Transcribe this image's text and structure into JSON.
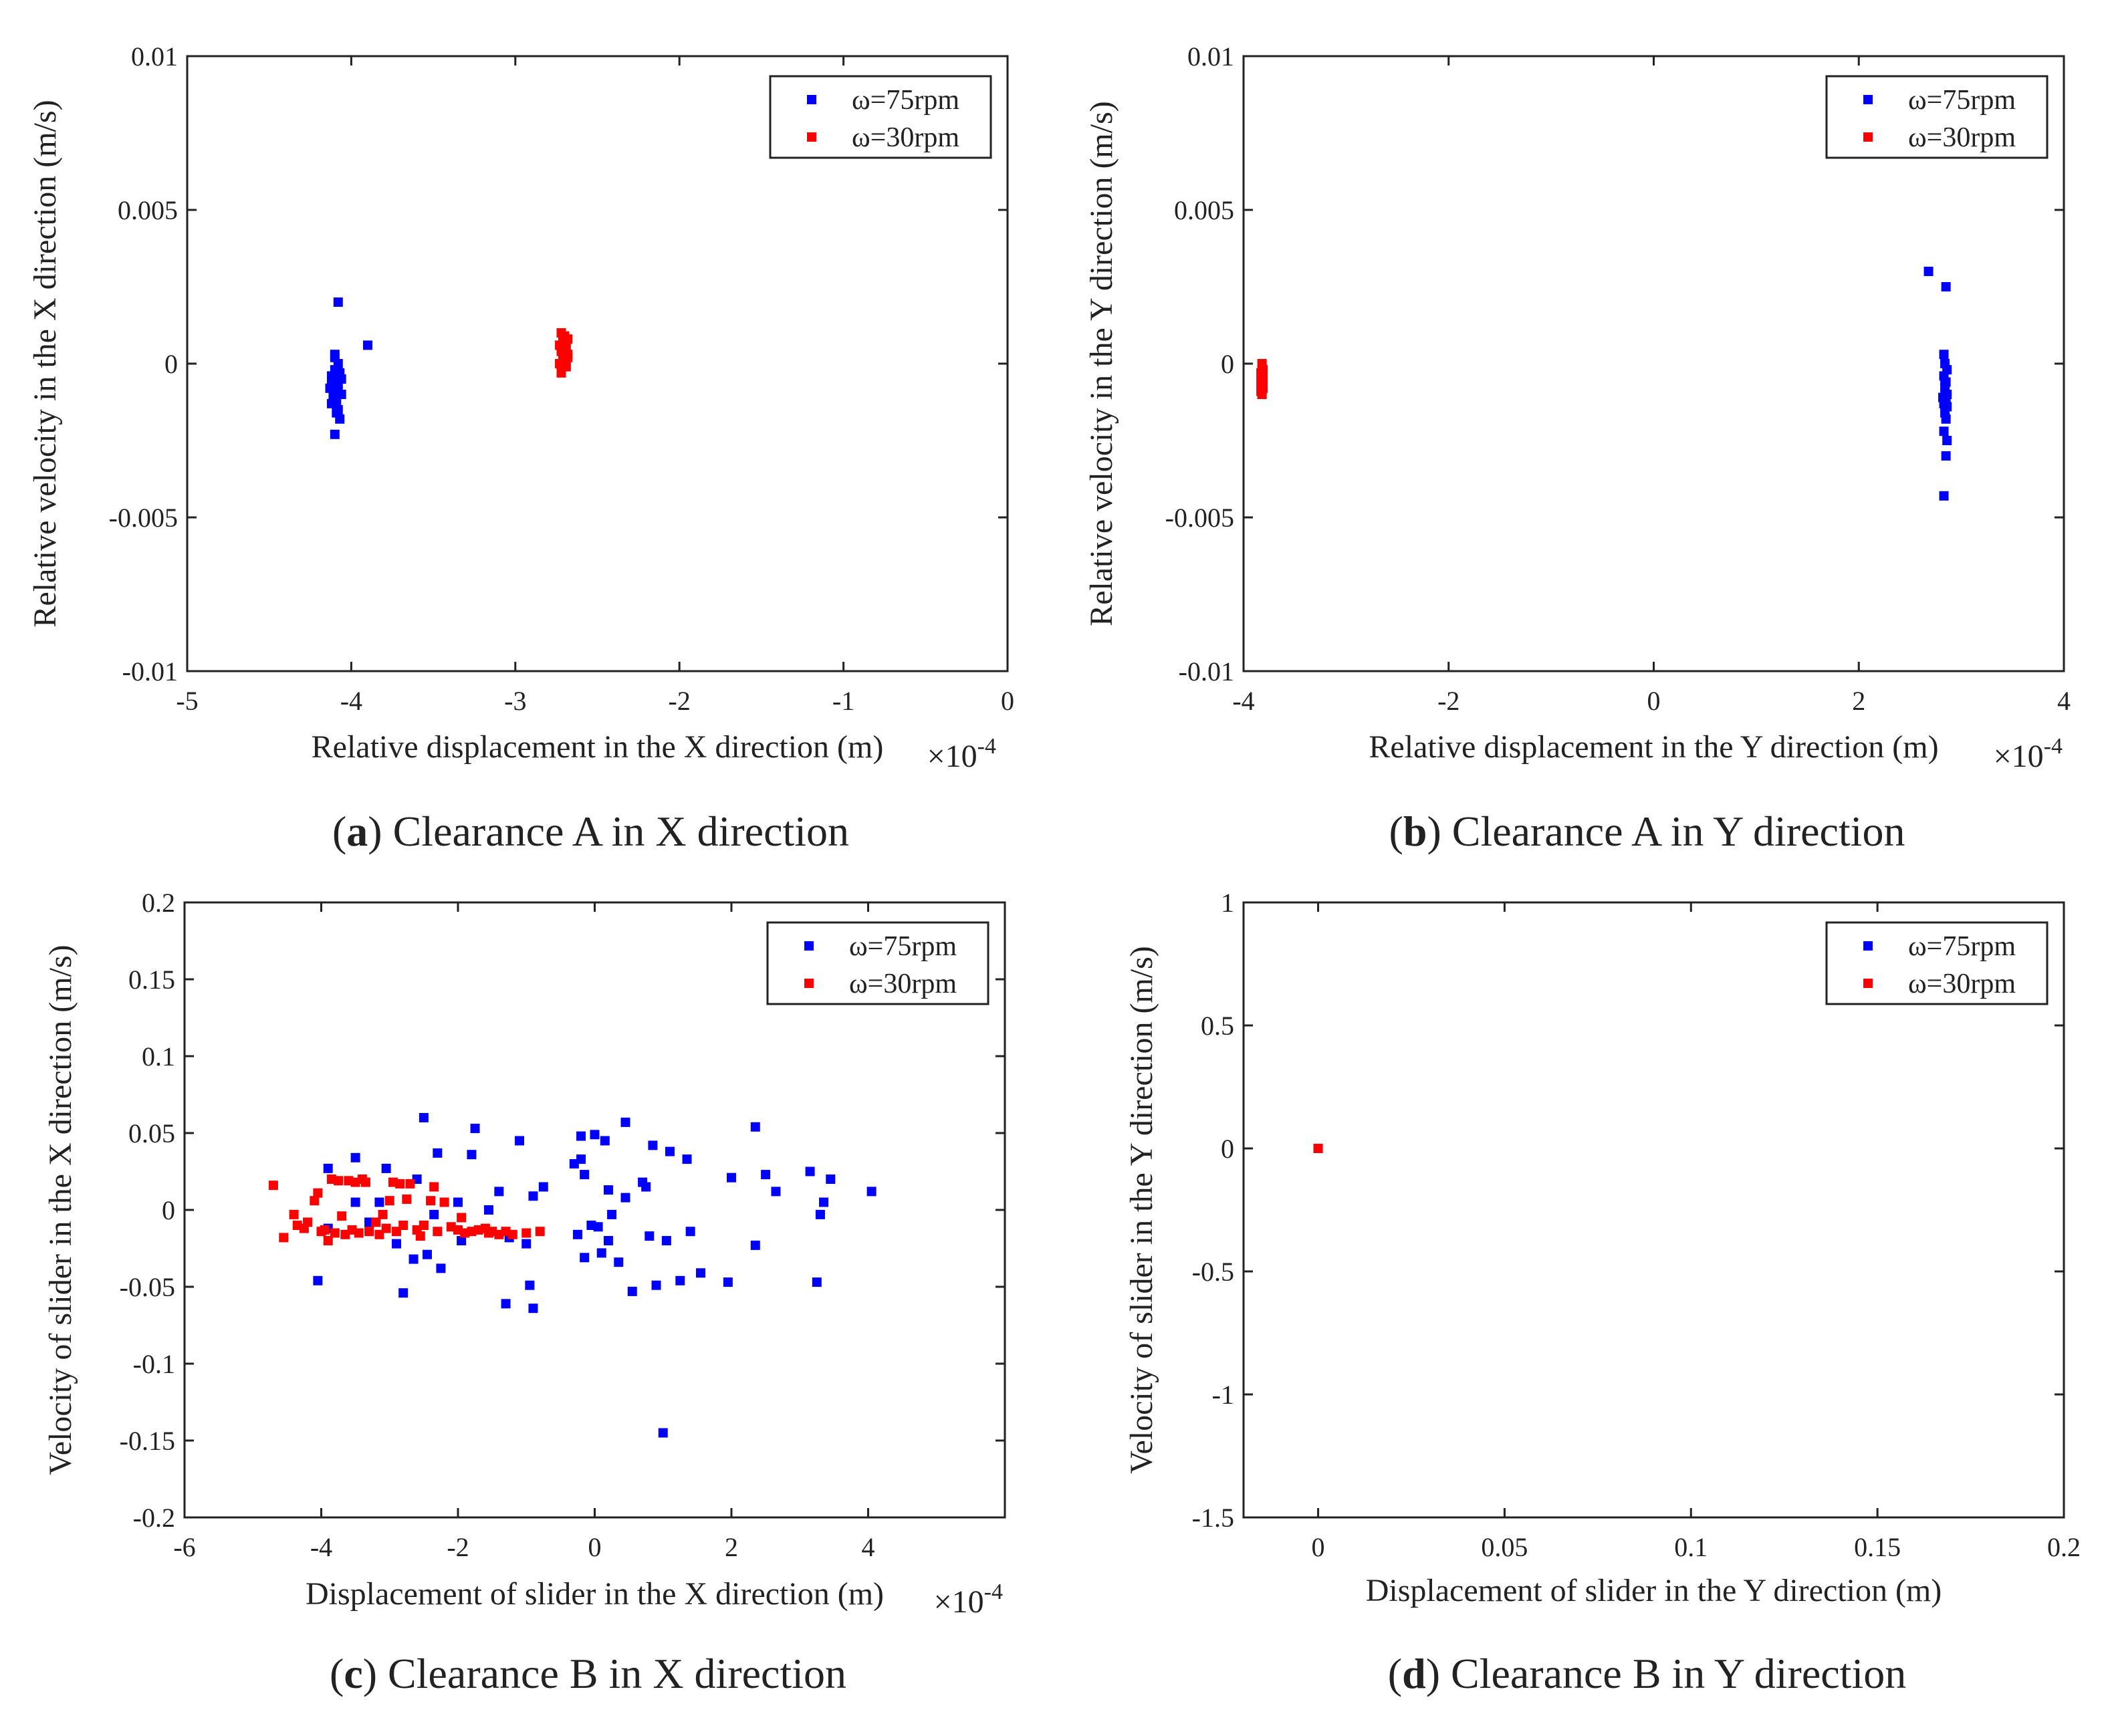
{
  "chart_data": [
    {
      "id": "a",
      "type": "scatter",
      "caption": {
        "letter": "a",
        "text": " Clearance A in X direction"
      },
      "xlabel": "Relative displacement in the X direction (m)",
      "ylabel": "Relative velocity in the X direction (m/s)",
      "x_multiplier": "×10",
      "x_exponent": "-4",
      "xlim": [
        -5,
        0
      ],
      "ylim": [
        -0.01,
        0.01
      ],
      "xticks": [
        -5,
        -4,
        -3,
        -2,
        -1,
        0
      ],
      "xtick_labels": [
        "-5",
        "-4",
        "-3",
        "-2",
        "-1",
        "0"
      ],
      "yticks": [
        -0.01,
        -0.005,
        0,
        0.005,
        0.01
      ],
      "ytick_labels": [
        "-0.01",
        "-0.005",
        "0",
        "0.005",
        "0.01"
      ],
      "legend_position": "top-right",
      "series": [
        {
          "name": "ω=75rpm",
          "color": "#0000ff",
          "points": [
            [
              -4.08,
              0.002
            ],
            [
              -3.9,
              0.0006
            ],
            [
              -4.1,
              0.0003
            ],
            [
              -4.1,
              0.0002
            ],
            [
              -4.08,
              0.0
            ],
            [
              -4.1,
              -0.0002
            ],
            [
              -4.12,
              -0.0004
            ],
            [
              -4.06,
              -0.0005
            ],
            [
              -4.1,
              -0.0006
            ],
            [
              -4.12,
              -0.0007
            ],
            [
              -4.08,
              -0.0008
            ],
            [
              -4.1,
              -0.0009
            ],
            [
              -4.06,
              -0.001
            ],
            [
              -4.11,
              -0.0011
            ],
            [
              -4.09,
              -0.0012
            ],
            [
              -4.12,
              -0.0013
            ],
            [
              -4.08,
              -0.0015
            ],
            [
              -4.07,
              -0.0018
            ],
            [
              -4.1,
              -0.0023
            ],
            [
              -4.13,
              -0.0008
            ],
            [
              -4.07,
              -0.0003
            ],
            [
              -4.09,
              -0.0016
            ]
          ]
        },
        {
          "name": "ω=30rpm",
          "color": "#ff0000",
          "points": [
            [
              -2.72,
              0.001
            ],
            [
              -2.7,
              0.0009
            ],
            [
              -2.68,
              0.0008
            ],
            [
              -2.71,
              0.0007
            ],
            [
              -2.73,
              0.0006
            ],
            [
              -2.69,
              0.0005
            ],
            [
              -2.72,
              0.0004
            ],
            [
              -2.7,
              0.0003
            ],
            [
              -2.68,
              0.0002
            ],
            [
              -2.71,
              0.0001
            ],
            [
              -2.73,
              0.0
            ],
            [
              -2.69,
              -0.0001
            ],
            [
              -2.72,
              -0.0003
            ],
            [
              -2.7,
              0.0006
            ],
            [
              -2.68,
              0.0003
            ]
          ]
        }
      ]
    },
    {
      "id": "b",
      "type": "scatter",
      "caption": {
        "letter": "b",
        "text": " Clearance A in Y direction"
      },
      "xlabel": "Relative displacement in the Y direction (m)",
      "ylabel": "Relative velocity in the Y direction (m/s)",
      "x_multiplier": "×10",
      "x_exponent": "-4",
      "xlim": [
        -4,
        4
      ],
      "ylim": [
        -0.01,
        0.01
      ],
      "xticks": [
        -4,
        -2,
        0,
        2,
        4
      ],
      "xtick_labels": [
        "-4",
        "-2",
        "0",
        "2",
        "4"
      ],
      "yticks": [
        -0.01,
        -0.005,
        0,
        0.005,
        0.01
      ],
      "ytick_labels": [
        "-0.01",
        "-0.005",
        "0",
        "0.005",
        "0.01"
      ],
      "legend_position": "top-right",
      "series": [
        {
          "name": "ω=75rpm",
          "color": "#0000ff",
          "points": [
            [
              2.68,
              0.003
            ],
            [
              2.85,
              0.0025
            ],
            [
              2.83,
              0.0003
            ],
            [
              2.84,
              0.0
            ],
            [
              2.86,
              -0.0002
            ],
            [
              2.83,
              -0.0004
            ],
            [
              2.85,
              -0.0006
            ],
            [
              2.84,
              -0.0008
            ],
            [
              2.86,
              -0.001
            ],
            [
              2.82,
              -0.0011
            ],
            [
              2.85,
              -0.0012
            ],
            [
              2.83,
              -0.0013
            ],
            [
              2.86,
              -0.0014
            ],
            [
              2.84,
              -0.0016
            ],
            [
              2.85,
              -0.0018
            ],
            [
              2.83,
              -0.0022
            ],
            [
              2.86,
              -0.0025
            ],
            [
              2.85,
              -0.003
            ],
            [
              2.83,
              -0.0043
            ],
            [
              2.84,
              -0.0007
            ]
          ]
        },
        {
          "name": "ω=30rpm",
          "color": "#ff0000",
          "points": [
            [
              -3.82,
              0.0
            ],
            [
              -3.81,
              -0.0002
            ],
            [
              -3.83,
              -0.0003
            ],
            [
              -3.82,
              -0.0004
            ],
            [
              -3.81,
              -0.0005
            ],
            [
              -3.83,
              -0.0006
            ],
            [
              -3.82,
              -0.0007
            ],
            [
              -3.81,
              -0.0008
            ],
            [
              -3.83,
              -0.0009
            ],
            [
              -3.82,
              -0.001
            ]
          ]
        }
      ]
    },
    {
      "id": "c",
      "type": "scatter",
      "caption": {
        "letter": "c",
        "text": " Clearance B in X direction"
      },
      "xlabel": "Displacement of slider in the X direction (m)",
      "ylabel": "Velocity of slider in the X direction (m/s)",
      "x_multiplier": "×10",
      "x_exponent": "-4",
      "xlim": [
        -6,
        6
      ],
      "ylim": [
        -0.2,
        0.2
      ],
      "xticks": [
        -6,
        -4,
        -2,
        0,
        2,
        4
      ],
      "xtick_labels": [
        "-6",
        "-4",
        "-2",
        "0",
        "2",
        "4"
      ],
      "yticks": [
        -0.2,
        -0.15,
        -0.1,
        -0.05,
        0,
        0.05,
        0.1,
        0.15,
        0.2
      ],
      "ytick_labels": [
        "-0.2",
        "-0.15",
        "-0.1",
        "-0.05",
        "0",
        "0.05",
        "0.1",
        "0.15",
        "0.2"
      ],
      "legend_position": "top-right",
      "series": [
        {
          "name": "ω=75rpm",
          "color": "#0000ff",
          "points": [
            [
              -3.9,
              0.027
            ],
            [
              -3.5,
              0.034
            ],
            [
              -3.05,
              0.027
            ],
            [
              -2.5,
              0.06
            ],
            [
              -2.3,
              0.037
            ],
            [
              -1.75,
              0.053
            ],
            [
              -1.8,
              0.036
            ],
            [
              -1.1,
              0.045
            ],
            [
              -0.3,
              0.03
            ],
            [
              -0.2,
              0.033
            ],
            [
              -0.2,
              0.048
            ],
            [
              0.0,
              0.049
            ],
            [
              0.15,
              0.045
            ],
            [
              0.45,
              0.057
            ],
            [
              0.85,
              0.042
            ],
            [
              1.1,
              0.038
            ],
            [
              1.35,
              0.033
            ],
            [
              2.35,
              0.054
            ],
            [
              3.15,
              0.025
            ],
            [
              3.45,
              0.02
            ],
            [
              4.05,
              0.012
            ],
            [
              2.0,
              0.021
            ],
            [
              2.5,
              0.023
            ],
            [
              2.65,
              0.012
            ],
            [
              3.35,
              0.005
            ],
            [
              3.3,
              -0.003
            ],
            [
              0.7,
              0.018
            ],
            [
              0.75,
              0.015
            ],
            [
              0.45,
              0.008
            ],
            [
              0.2,
              0.013
            ],
            [
              -0.15,
              0.023
            ],
            [
              -0.75,
              0.015
            ],
            [
              -0.9,
              0.009
            ],
            [
              -1.4,
              0.012
            ],
            [
              -1.55,
              0.0
            ],
            [
              -2.0,
              0.005
            ],
            [
              -2.35,
              -0.003
            ],
            [
              -2.6,
              0.02
            ],
            [
              -3.15,
              0.005
            ],
            [
              -3.5,
              0.005
            ],
            [
              -3.3,
              -0.008
            ],
            [
              -3.9,
              -0.012
            ],
            [
              -4.05,
              -0.046
            ],
            [
              -2.8,
              -0.054
            ],
            [
              -2.65,
              -0.032
            ],
            [
              -2.45,
              -0.029
            ],
            [
              -2.25,
              -0.038
            ],
            [
              -2.9,
              -0.022
            ],
            [
              -1.95,
              -0.02
            ],
            [
              -1.3,
              -0.061
            ],
            [
              -0.95,
              -0.049
            ],
            [
              -0.9,
              -0.064
            ],
            [
              -1.0,
              -0.022
            ],
            [
              -1.25,
              -0.018
            ],
            [
              -0.25,
              -0.016
            ],
            [
              -0.15,
              -0.031
            ],
            [
              0.1,
              -0.028
            ],
            [
              0.05,
              -0.011
            ],
            [
              0.2,
              -0.02
            ],
            [
              0.35,
              -0.034
            ],
            [
              0.55,
              -0.053
            ],
            [
              0.8,
              -0.017
            ],
            [
              0.9,
              -0.049
            ],
            [
              1.05,
              -0.02
            ],
            [
              1.25,
              -0.046
            ],
            [
              1.4,
              -0.014
            ],
            [
              1.55,
              -0.041
            ],
            [
              1.95,
              -0.047
            ],
            [
              2.35,
              -0.023
            ],
            [
              3.25,
              -0.047
            ],
            [
              1.0,
              -0.145
            ],
            [
              0.25,
              -0.003
            ],
            [
              -0.05,
              -0.01
            ]
          ]
        },
        {
          "name": "ω=30rpm",
          "color": "#ff0000",
          "points": [
            [
              -4.7,
              0.016
            ],
            [
              -4.55,
              -0.018
            ],
            [
              -4.4,
              -0.003
            ],
            [
              -4.2,
              -0.008
            ],
            [
              -4.1,
              0.006
            ],
            [
              -4.05,
              0.011
            ],
            [
              -3.95,
              -0.013
            ],
            [
              -3.85,
              0.02
            ],
            [
              -3.75,
              0.019
            ],
            [
              -3.7,
              -0.004
            ],
            [
              -3.6,
              0.019
            ],
            [
              -3.5,
              0.018
            ],
            [
              -3.4,
              0.02
            ],
            [
              -3.35,
              0.018
            ],
            [
              -3.2,
              -0.008
            ],
            [
              -3.1,
              -0.003
            ],
            [
              -3.0,
              0.006
            ],
            [
              -2.95,
              0.018
            ],
            [
              -2.85,
              0.017
            ],
            [
              -2.75,
              0.007
            ],
            [
              -2.7,
              0.017
            ],
            [
              -2.6,
              -0.013
            ],
            [
              -2.5,
              -0.01
            ],
            [
              -2.4,
              0.006
            ],
            [
              -2.3,
              -0.014
            ],
            [
              -2.2,
              0.005
            ],
            [
              -2.1,
              -0.011
            ],
            [
              -2.0,
              -0.013
            ],
            [
              -1.9,
              -0.015
            ],
            [
              -1.8,
              -0.014
            ],
            [
              -1.7,
              -0.013
            ],
            [
              -1.6,
              -0.012
            ],
            [
              -1.5,
              -0.014
            ],
            [
              -1.4,
              -0.016
            ],
            [
              -1.3,
              -0.014
            ],
            [
              -1.2,
              -0.016
            ],
            [
              -1.0,
              -0.015
            ],
            [
              -0.8,
              -0.014
            ],
            [
              -4.35,
              -0.01
            ],
            [
              -4.25,
              -0.012
            ],
            [
              -3.9,
              -0.02
            ],
            [
              -3.8,
              -0.015
            ],
            [
              -3.65,
              -0.016
            ],
            [
              -3.55,
              -0.013
            ],
            [
              -3.45,
              -0.015
            ],
            [
              -3.3,
              -0.014
            ],
            [
              -3.05,
              -0.012
            ],
            [
              -2.9,
              -0.014
            ],
            [
              -2.55,
              -0.017
            ],
            [
              -2.35,
              0.015
            ],
            [
              -1.95,
              -0.005
            ],
            [
              -1.55,
              -0.015
            ],
            [
              -4.0,
              -0.014
            ],
            [
              -3.15,
              -0.016
            ],
            [
              -2.8,
              -0.01
            ]
          ]
        }
      ]
    },
    {
      "id": "d",
      "type": "scatter",
      "caption": {
        "letter": "d",
        "text": " Clearance B in Y direction"
      },
      "xlabel": "Displacement of slider in the Y direction (m)",
      "ylabel": "Velocity of slider in the Y direction (m/s)",
      "xlim": [
        -0.02,
        0.2
      ],
      "ylim": [
        -1.5,
        1
      ],
      "xticks": [
        0,
        0.05,
        0.1,
        0.15,
        0.2
      ],
      "xtick_labels": [
        "0",
        "0.05",
        "0.1",
        "0.15",
        "0.2"
      ],
      "yticks": [
        -1.5,
        -1,
        -0.5,
        0,
        0.5,
        1
      ],
      "ytick_labels": [
        "-1.5",
        "-1",
        "-0.5",
        "0",
        "0.5",
        "1"
      ],
      "legend_position": "top-right",
      "series": [
        {
          "name": "ω=75rpm",
          "color": "#0000ff",
          "points": [
            [
              0,
              0
            ]
          ]
        },
        {
          "name": "ω=30rpm",
          "color": "#ff0000",
          "points": [
            [
              0,
              0
            ]
          ]
        }
      ]
    }
  ]
}
